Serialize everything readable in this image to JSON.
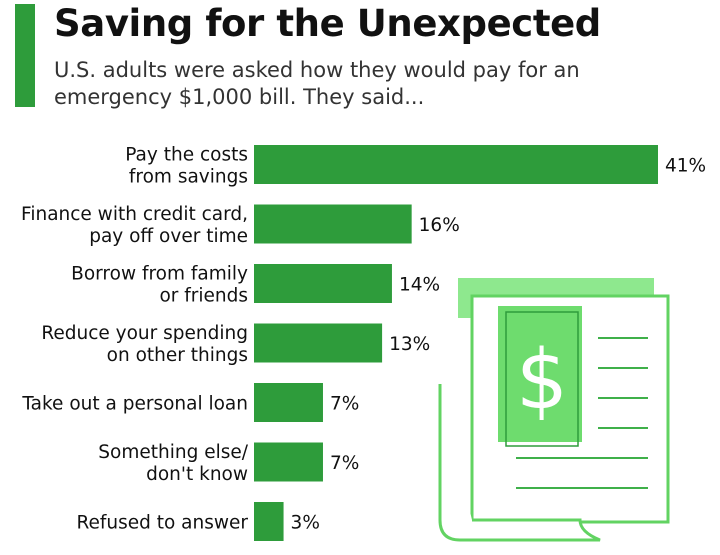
{
  "header": {
    "title": "Saving for the Unexpected",
    "subtitle": "U.S. adults were asked how they would pay for an emergency $1,000 bill. They said..."
  },
  "colors": {
    "accent": "#2e9c3b",
    "bar": "#2e9c3b",
    "illustration_light": "#8ee88e",
    "illustration_mid": "#62d362",
    "illustration_line": "#3fb04a"
  },
  "illustration": {
    "icon": "money-newspaper-icon",
    "symbol": "$"
  },
  "chart_data": {
    "type": "bar",
    "orientation": "horizontal",
    "title": "Saving for the Unexpected",
    "subtitle": "U.S. adults were asked how they would pay for an emergency $1,000 bill. They said...",
    "categories": [
      [
        "Pay the costs",
        "from savings"
      ],
      [
        "Finance with credit card,",
        "pay off over time"
      ],
      [
        "Borrow from family",
        "or friends"
      ],
      [
        "Reduce your spending",
        "on other things"
      ],
      [
        "Take out a personal loan"
      ],
      [
        "Something else/",
        "don't know"
      ],
      [
        "Refused to answer"
      ]
    ],
    "values": [
      41,
      16,
      14,
      13,
      7,
      7,
      3
    ],
    "value_labels": [
      "41%",
      "16%",
      "14%",
      "13%",
      "7%",
      "7%",
      "3%"
    ],
    "unit": "%",
    "xlim": [
      0,
      41
    ],
    "grid": false,
    "legend": "none"
  }
}
